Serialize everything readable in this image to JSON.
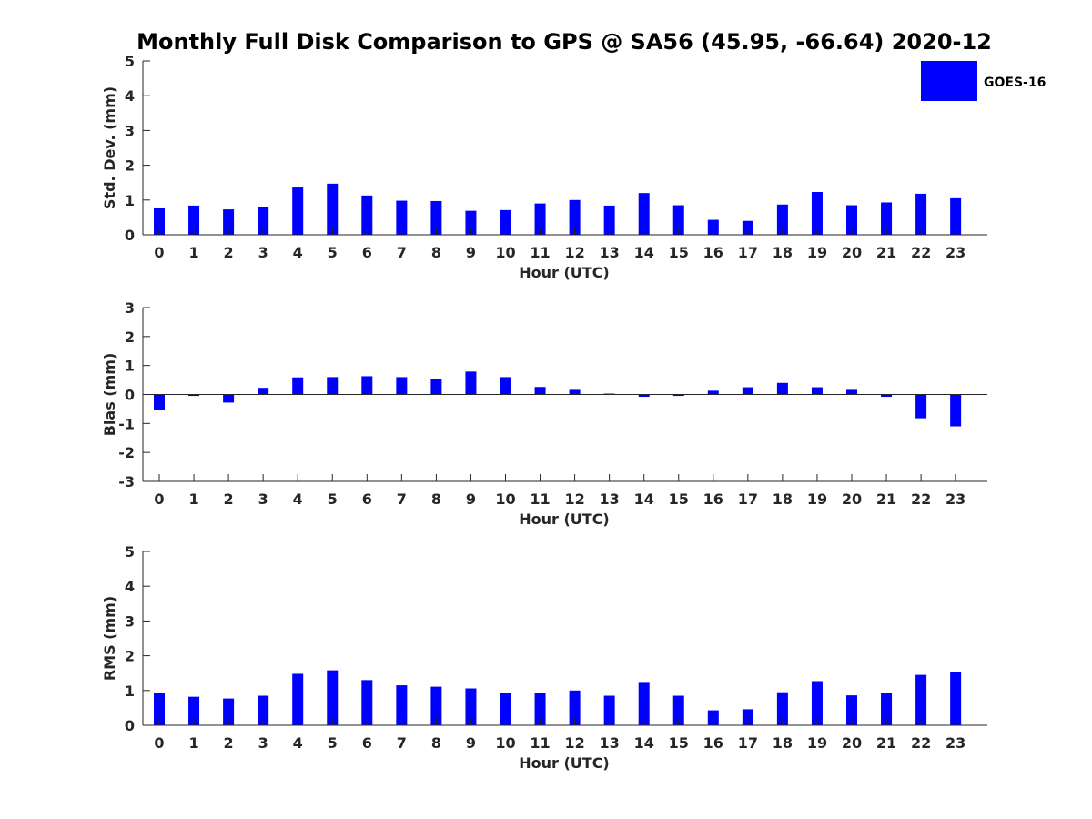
{
  "title": "Monthly Full Disk Comparison to GPS @ SA56 (45.95, -66.64) 2020-12",
  "legend": {
    "label": "GOES-16",
    "color": "#0000ff"
  },
  "chart_data": [
    {
      "id": "std",
      "type": "bar",
      "title": "Monthly Full Disk Comparison to GPS @ SA56 (45.95, -66.64) 2020-12",
      "xlabel": "Hour (UTC)",
      "ylabel": "Std. Dev. (mm)",
      "ylim": [
        0,
        5
      ],
      "yticks": [
        "0",
        "1",
        "2",
        "3",
        "4",
        "5"
      ],
      "categories": [
        "0",
        "1",
        "2",
        "3",
        "4",
        "5",
        "6",
        "7",
        "8",
        "9",
        "10",
        "11",
        "12",
        "13",
        "14",
        "15",
        "16",
        "17",
        "18",
        "19",
        "20",
        "21",
        "22",
        "23"
      ],
      "series": [
        {
          "name": "GOES-16",
          "values": [
            0.76,
            0.84,
            0.73,
            0.81,
            1.36,
            1.47,
            1.13,
            0.98,
            0.97,
            0.69,
            0.71,
            0.9,
            1.0,
            0.84,
            1.2,
            0.85,
            0.43,
            0.4,
            0.87,
            1.23,
            0.85,
            0.93,
            1.18,
            1.05
          ]
        }
      ],
      "legend_position": "top-right"
    },
    {
      "id": "bias",
      "type": "bar",
      "xlabel": "Hour (UTC)",
      "ylabel": "Bias (mm)",
      "ylim": [
        -3,
        3
      ],
      "yticks": [
        "-3",
        "-2",
        "-1",
        "0",
        "1",
        "2",
        "3"
      ],
      "categories": [
        "0",
        "1",
        "2",
        "3",
        "4",
        "5",
        "6",
        "7",
        "8",
        "9",
        "10",
        "11",
        "12",
        "13",
        "14",
        "15",
        "16",
        "17",
        "18",
        "19",
        "20",
        "21",
        "22",
        "23"
      ],
      "series": [
        {
          "name": "GOES-16",
          "values": [
            -0.53,
            -0.05,
            -0.28,
            0.23,
            0.59,
            0.6,
            0.63,
            0.6,
            0.55,
            0.79,
            0.6,
            0.26,
            0.16,
            0.03,
            -0.08,
            -0.05,
            0.13,
            0.25,
            0.4,
            0.25,
            0.16,
            -0.08,
            -0.82,
            -1.1
          ]
        }
      ]
    },
    {
      "id": "rms",
      "type": "bar",
      "xlabel": "Hour (UTC)",
      "ylabel": "RMS (mm)",
      "ylim": [
        0,
        5
      ],
      "yticks": [
        "0",
        "1",
        "2",
        "3",
        "4",
        "5"
      ],
      "categories": [
        "0",
        "1",
        "2",
        "3",
        "4",
        "5",
        "6",
        "7",
        "8",
        "9",
        "10",
        "11",
        "12",
        "13",
        "14",
        "15",
        "16",
        "17",
        "18",
        "19",
        "20",
        "21",
        "22",
        "23"
      ],
      "series": [
        {
          "name": "GOES-16",
          "values": [
            0.93,
            0.82,
            0.77,
            0.85,
            1.48,
            1.58,
            1.3,
            1.15,
            1.11,
            1.06,
            0.93,
            0.93,
            1.0,
            0.85,
            1.22,
            0.85,
            0.43,
            0.46,
            0.95,
            1.27,
            0.86,
            0.93,
            1.45,
            1.53
          ]
        }
      ]
    }
  ]
}
